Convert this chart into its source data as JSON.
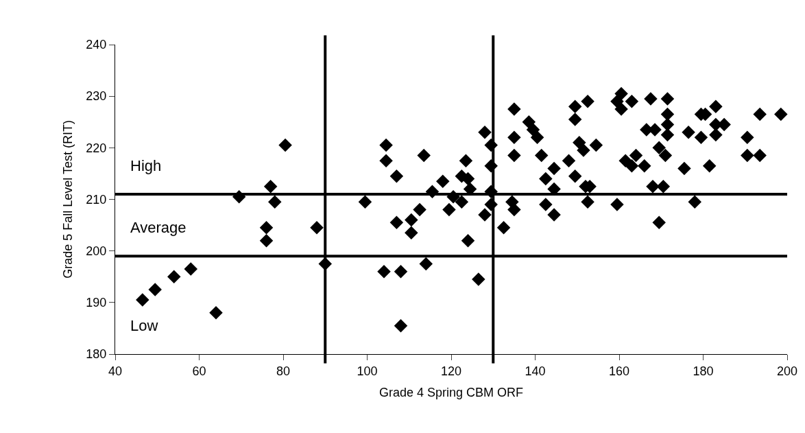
{
  "chart_data": {
    "type": "scatter",
    "xlabel": "Grade 4 Spring CBM ORF",
    "ylabel": "Grade 5 Fall Level Test (RIT)",
    "xlim": [
      40,
      200
    ],
    "xticks": [
      40,
      60,
      80,
      100,
      120,
      140,
      160,
      180,
      200
    ],
    "ylim": [
      180,
      240
    ],
    "yticks": [
      180,
      190,
      200,
      210,
      220,
      230,
      240
    ],
    "marker": "diamond",
    "series": [
      {
        "color": "#000000",
        "x": [
          46.5,
          49.5,
          54,
          58,
          64,
          69.5,
          76,
          76,
          77,
          78,
          80.5,
          88,
          90,
          99.5,
          104.5,
          104.5,
          104,
          107,
          107,
          108,
          108,
          110.5,
          110.5,
          112.5,
          113.5,
          114,
          115.5,
          118,
          119.5,
          120.5,
          122.5,
          122.5,
          123.5,
          124,
          124.5,
          124,
          126.5,
          128,
          128,
          129.5,
          129.5,
          129.5,
          129.5,
          132.5,
          135,
          135,
          135,
          134.5,
          135,
          138.5,
          139.5,
          140.5,
          141.5,
          142.5,
          144.5,
          144.5,
          142.5,
          144.5,
          148,
          149.5,
          149.5,
          149.5,
          152.5,
          150.5,
          151.5,
          154.5,
          152,
          153,
          152.5,
          159.5,
          160.5,
          159.5,
          163,
          160.5,
          161.5,
          163,
          164,
          166,
          167.5,
          166.5,
          168.5,
          169.5,
          171,
          168,
          170.5,
          169.5,
          171.5,
          171.5,
          171.5,
          171.5,
          176.5,
          175.5,
          179.5,
          178,
          181.5,
          179.5,
          180.5,
          183,
          183,
          185,
          183,
          190.5,
          190.5,
          193.5,
          193.5,
          198.5
        ],
        "values": [
          190.5,
          192.5,
          195,
          196.5,
          188,
          210.5,
          204.5,
          202,
          212.5,
          209.5,
          220.5,
          204.5,
          197.5,
          209.5,
          220.5,
          217.5,
          196,
          214.5,
          205.5,
          196,
          185.5,
          206,
          203.5,
          208,
          218.5,
          197.5,
          211.5,
          213.5,
          208,
          210.5,
          209.5,
          214.5,
          217.5,
          214,
          212,
          202,
          194.5,
          223,
          207,
          220.5,
          216.5,
          211.5,
          209,
          204.5,
          227.5,
          222,
          218.5,
          209.5,
          208,
          225,
          223.5,
          222,
          218.5,
          214,
          216,
          212,
          209,
          207,
          217.5,
          214.5,
          228,
          225.5,
          229,
          221,
          219.5,
          220.5,
          212.5,
          212.5,
          209.5,
          209,
          230.5,
          229,
          229,
          227.5,
          217.5,
          216.5,
          218.5,
          216.5,
          229.5,
          223.5,
          223.5,
          220,
          218.5,
          212.5,
          212.5,
          205.5,
          229.5,
          226.5,
          224.5,
          222.5,
          223,
          216,
          222,
          209.5,
          216.5,
          226.5,
          226.5,
          228,
          224.5,
          224.5,
          222.5,
          222,
          218.5,
          218.5,
          226.5,
          226.5
        ]
      }
    ],
    "ref_lines": [
      {
        "axis": "y",
        "value": 211,
        "color": "#000000"
      },
      {
        "axis": "y",
        "value": 199,
        "color": "#000000"
      },
      {
        "axis": "x",
        "value": 90,
        "color": "#000000"
      },
      {
        "axis": "x",
        "value": 130,
        "color": "#000000"
      }
    ],
    "annotations": [
      "High",
      "Average",
      "Low"
    ]
  }
}
